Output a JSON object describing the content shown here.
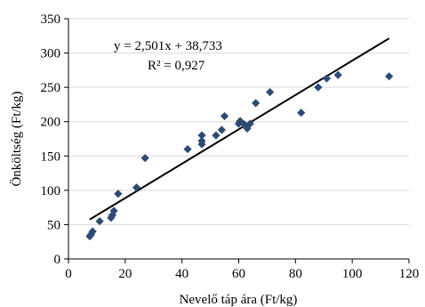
{
  "chart_data": {
    "type": "scatter",
    "xlabel": "Nevelő táp ára (Ft/kg)",
    "ylabel": "Önköltség (Ft/kg)",
    "xlim": [
      0,
      120
    ],
    "ylim": [
      0,
      350
    ],
    "xticks": [
      0,
      20,
      40,
      60,
      80,
      100,
      120
    ],
    "yticks": [
      0,
      50,
      100,
      150,
      200,
      250,
      300,
      350
    ],
    "xtick_labels": [
      "0",
      "20",
      "40",
      "60",
      "80",
      "100",
      "120"
    ],
    "ytick_labels": [
      "0",
      "50",
      "100",
      "150",
      "200",
      "250",
      "300",
      "350"
    ],
    "grid": "horizontal",
    "legend": "none",
    "marker": "diamond",
    "marker_color": "#2e4a73",
    "trendline_color": "#000000",
    "gridline_color": "#d9d9d9",
    "points": [
      {
        "x": 7.5,
        "y": 33
      },
      {
        "x": 8,
        "y": 36
      },
      {
        "x": 8.5,
        "y": 40
      },
      {
        "x": 11,
        "y": 55
      },
      {
        "x": 15,
        "y": 60
      },
      {
        "x": 15.5,
        "y": 64
      },
      {
        "x": 16,
        "y": 70
      },
      {
        "x": 17.5,
        "y": 95
      },
      {
        "x": 24,
        "y": 104
      },
      {
        "x": 27,
        "y": 147
      },
      {
        "x": 42,
        "y": 160
      },
      {
        "x": 47,
        "y": 167
      },
      {
        "x": 47,
        "y": 172
      },
      {
        "x": 47,
        "y": 180
      },
      {
        "x": 52,
        "y": 180
      },
      {
        "x": 54,
        "y": 188
      },
      {
        "x": 55,
        "y": 208
      },
      {
        "x": 60,
        "y": 197
      },
      {
        "x": 60.5,
        "y": 201
      },
      {
        "x": 62,
        "y": 196
      },
      {
        "x": 63,
        "y": 190
      },
      {
        "x": 64,
        "y": 197
      },
      {
        "x": 66,
        "y": 227
      },
      {
        "x": 71,
        "y": 243
      },
      {
        "x": 82,
        "y": 213
      },
      {
        "x": 88,
        "y": 250
      },
      {
        "x": 91,
        "y": 263
      },
      {
        "x": 95,
        "y": 268
      },
      {
        "x": 113,
        "y": 266
      }
    ],
    "trendline": {
      "slope": 2.501,
      "intercept": 38.733,
      "x_start": 7.5,
      "x_end": 113,
      "equation_label": "y = 2,501x + 38,733",
      "r2_label": "R² = 0,927"
    }
  }
}
